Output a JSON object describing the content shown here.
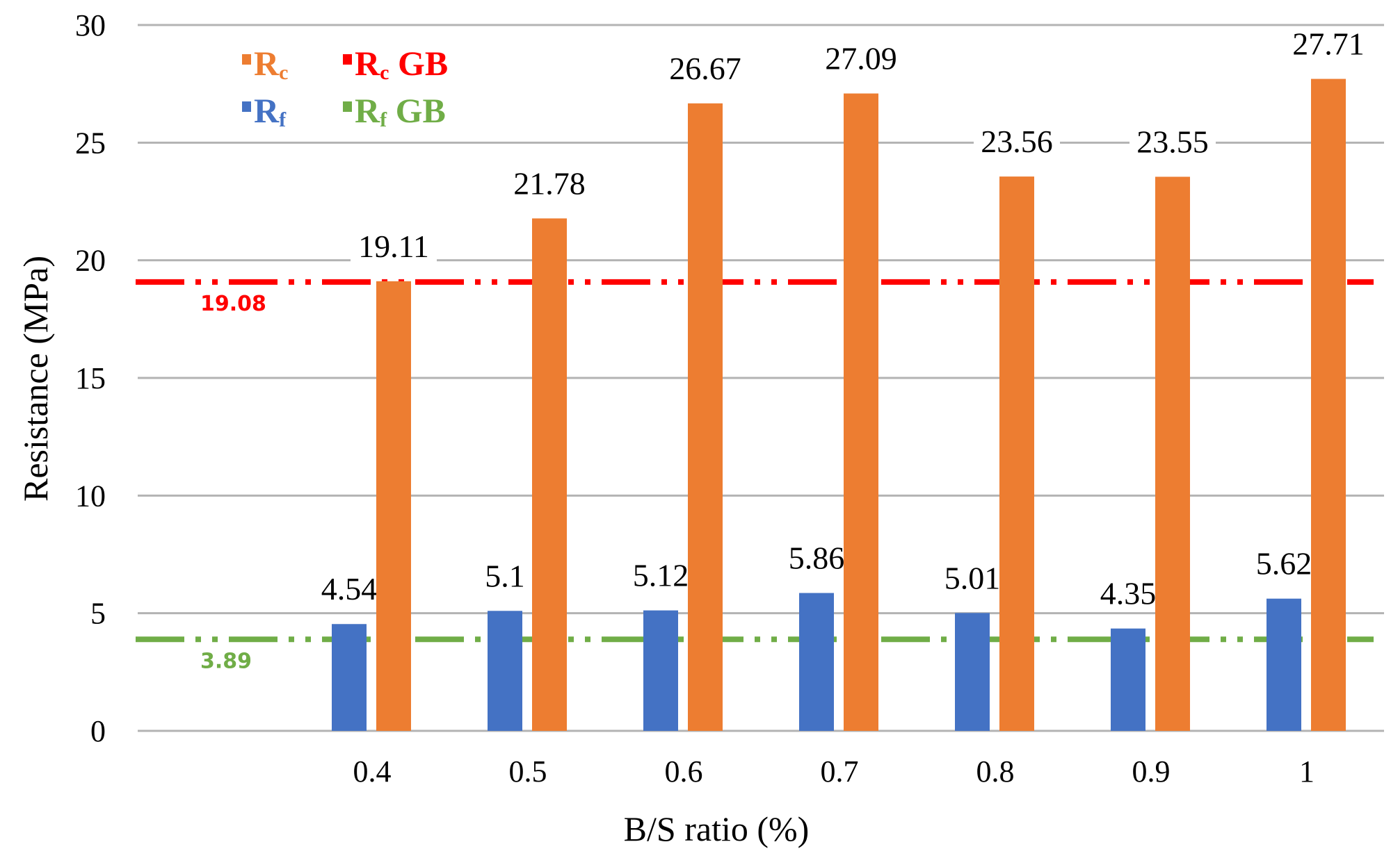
{
  "chart_data": {
    "type": "bar",
    "title": "",
    "xlabel": "B/S ratio (%)",
    "ylabel": "Resistance (MPa)",
    "ylim": [
      0,
      30
    ],
    "yticks": [
      0,
      5,
      10,
      15,
      20,
      25,
      30
    ],
    "grid": true,
    "legend_position": "top-left",
    "categories": [
      "0.4",
      "0.5",
      "0.6",
      "0.7",
      "0.8",
      "0.9",
      "1"
    ],
    "series": [
      {
        "name": "Rf",
        "name_main": "R",
        "name_sub": "f",
        "color": "#4472C4",
        "values": [
          4.54,
          5.1,
          5.12,
          5.86,
          5.01,
          4.35,
          5.62
        ],
        "labels": [
          "4.54",
          "5.1",
          "5.12",
          "5.86",
          "5.01",
          "4.35",
          "5.62"
        ]
      },
      {
        "name": "Rc",
        "name_main": "R",
        "name_sub": "c",
        "color": "#ED7D31",
        "values": [
          19.11,
          21.78,
          26.67,
          27.09,
          23.56,
          23.55,
          27.71
        ],
        "labels": [
          "19.11",
          "21.78",
          "26.67",
          "27.09",
          "23.56",
          "23.55",
          "27.71"
        ]
      }
    ],
    "reference_lines": [
      {
        "name": "Rc GB",
        "name_main": "R",
        "name_sub": "c",
        "name_suffix": " GB",
        "value": 19.08,
        "label": "19.08",
        "color": "#FF0000"
      },
      {
        "name": "Rf GB",
        "name_main": "R",
        "name_sub": "f",
        "name_suffix": " GB",
        "value": 3.89,
        "label": "3.89",
        "color": "#70AD47"
      }
    ]
  }
}
